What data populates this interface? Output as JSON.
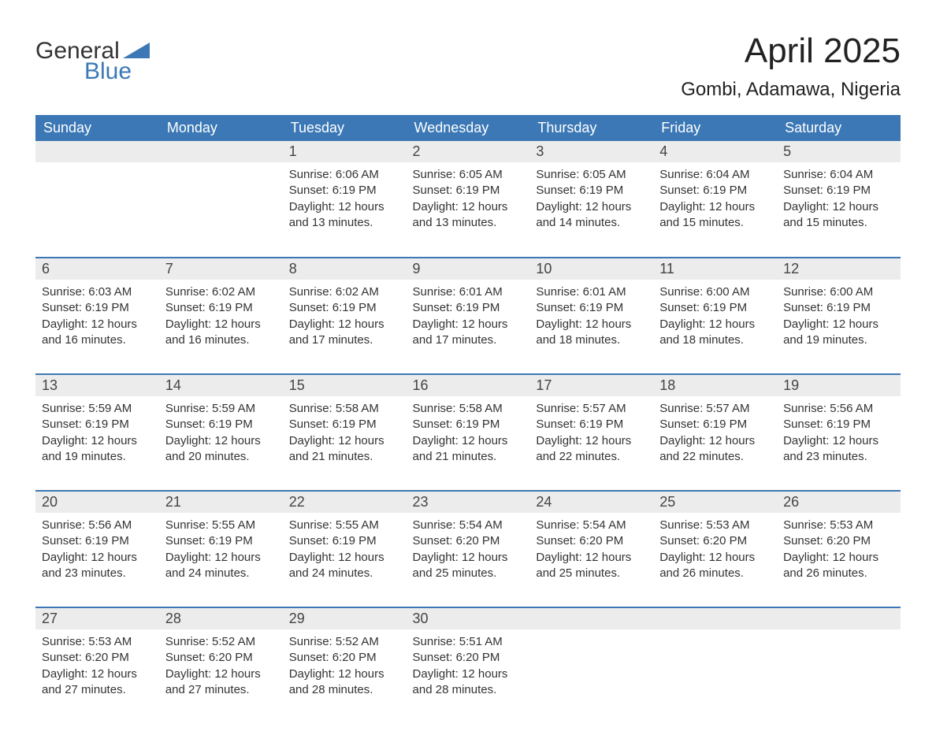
{
  "brand": {
    "word1": "General",
    "word2": "Blue",
    "text_color": "#333333",
    "accent_color": "#3b78b5"
  },
  "title": "April 2025",
  "location": "Gombi, Adamawa, Nigeria",
  "colors": {
    "header_bg": "#3b78b5",
    "header_text": "#ffffff",
    "daynum_bg": "#ececec",
    "body_bg": "#ffffff",
    "text": "#333333",
    "row_border": "#3b78b5"
  },
  "fonts": {
    "title_pt": 44,
    "location_pt": 24,
    "header_pt": 18,
    "daynum_pt": 18,
    "body_pt": 15
  },
  "day_headers": [
    "Sunday",
    "Monday",
    "Tuesday",
    "Wednesday",
    "Thursday",
    "Friday",
    "Saturday"
  ],
  "weeks": [
    [
      null,
      null,
      {
        "n": "1",
        "sunrise": "Sunrise: 6:06 AM",
        "sunset": "Sunset: 6:19 PM",
        "dl1": "Daylight: 12 hours",
        "dl2": "and 13 minutes."
      },
      {
        "n": "2",
        "sunrise": "Sunrise: 6:05 AM",
        "sunset": "Sunset: 6:19 PM",
        "dl1": "Daylight: 12 hours",
        "dl2": "and 13 minutes."
      },
      {
        "n": "3",
        "sunrise": "Sunrise: 6:05 AM",
        "sunset": "Sunset: 6:19 PM",
        "dl1": "Daylight: 12 hours",
        "dl2": "and 14 minutes."
      },
      {
        "n": "4",
        "sunrise": "Sunrise: 6:04 AM",
        "sunset": "Sunset: 6:19 PM",
        "dl1": "Daylight: 12 hours",
        "dl2": "and 15 minutes."
      },
      {
        "n": "5",
        "sunrise": "Sunrise: 6:04 AM",
        "sunset": "Sunset: 6:19 PM",
        "dl1": "Daylight: 12 hours",
        "dl2": "and 15 minutes."
      }
    ],
    [
      {
        "n": "6",
        "sunrise": "Sunrise: 6:03 AM",
        "sunset": "Sunset: 6:19 PM",
        "dl1": "Daylight: 12 hours",
        "dl2": "and 16 minutes."
      },
      {
        "n": "7",
        "sunrise": "Sunrise: 6:02 AM",
        "sunset": "Sunset: 6:19 PM",
        "dl1": "Daylight: 12 hours",
        "dl2": "and 16 minutes."
      },
      {
        "n": "8",
        "sunrise": "Sunrise: 6:02 AM",
        "sunset": "Sunset: 6:19 PM",
        "dl1": "Daylight: 12 hours",
        "dl2": "and 17 minutes."
      },
      {
        "n": "9",
        "sunrise": "Sunrise: 6:01 AM",
        "sunset": "Sunset: 6:19 PM",
        "dl1": "Daylight: 12 hours",
        "dl2": "and 17 minutes."
      },
      {
        "n": "10",
        "sunrise": "Sunrise: 6:01 AM",
        "sunset": "Sunset: 6:19 PM",
        "dl1": "Daylight: 12 hours",
        "dl2": "and 18 minutes."
      },
      {
        "n": "11",
        "sunrise": "Sunrise: 6:00 AM",
        "sunset": "Sunset: 6:19 PM",
        "dl1": "Daylight: 12 hours",
        "dl2": "and 18 minutes."
      },
      {
        "n": "12",
        "sunrise": "Sunrise: 6:00 AM",
        "sunset": "Sunset: 6:19 PM",
        "dl1": "Daylight: 12 hours",
        "dl2": "and 19 minutes."
      }
    ],
    [
      {
        "n": "13",
        "sunrise": "Sunrise: 5:59 AM",
        "sunset": "Sunset: 6:19 PM",
        "dl1": "Daylight: 12 hours",
        "dl2": "and 19 minutes."
      },
      {
        "n": "14",
        "sunrise": "Sunrise: 5:59 AM",
        "sunset": "Sunset: 6:19 PM",
        "dl1": "Daylight: 12 hours",
        "dl2": "and 20 minutes."
      },
      {
        "n": "15",
        "sunrise": "Sunrise: 5:58 AM",
        "sunset": "Sunset: 6:19 PM",
        "dl1": "Daylight: 12 hours",
        "dl2": "and 21 minutes."
      },
      {
        "n": "16",
        "sunrise": "Sunrise: 5:58 AM",
        "sunset": "Sunset: 6:19 PM",
        "dl1": "Daylight: 12 hours",
        "dl2": "and 21 minutes."
      },
      {
        "n": "17",
        "sunrise": "Sunrise: 5:57 AM",
        "sunset": "Sunset: 6:19 PM",
        "dl1": "Daylight: 12 hours",
        "dl2": "and 22 minutes."
      },
      {
        "n": "18",
        "sunrise": "Sunrise: 5:57 AM",
        "sunset": "Sunset: 6:19 PM",
        "dl1": "Daylight: 12 hours",
        "dl2": "and 22 minutes."
      },
      {
        "n": "19",
        "sunrise": "Sunrise: 5:56 AM",
        "sunset": "Sunset: 6:19 PM",
        "dl1": "Daylight: 12 hours",
        "dl2": "and 23 minutes."
      }
    ],
    [
      {
        "n": "20",
        "sunrise": "Sunrise: 5:56 AM",
        "sunset": "Sunset: 6:19 PM",
        "dl1": "Daylight: 12 hours",
        "dl2": "and 23 minutes."
      },
      {
        "n": "21",
        "sunrise": "Sunrise: 5:55 AM",
        "sunset": "Sunset: 6:19 PM",
        "dl1": "Daylight: 12 hours",
        "dl2": "and 24 minutes."
      },
      {
        "n": "22",
        "sunrise": "Sunrise: 5:55 AM",
        "sunset": "Sunset: 6:19 PM",
        "dl1": "Daylight: 12 hours",
        "dl2": "and 24 minutes."
      },
      {
        "n": "23",
        "sunrise": "Sunrise: 5:54 AM",
        "sunset": "Sunset: 6:20 PM",
        "dl1": "Daylight: 12 hours",
        "dl2": "and 25 minutes."
      },
      {
        "n": "24",
        "sunrise": "Sunrise: 5:54 AM",
        "sunset": "Sunset: 6:20 PM",
        "dl1": "Daylight: 12 hours",
        "dl2": "and 25 minutes."
      },
      {
        "n": "25",
        "sunrise": "Sunrise: 5:53 AM",
        "sunset": "Sunset: 6:20 PM",
        "dl1": "Daylight: 12 hours",
        "dl2": "and 26 minutes."
      },
      {
        "n": "26",
        "sunrise": "Sunrise: 5:53 AM",
        "sunset": "Sunset: 6:20 PM",
        "dl1": "Daylight: 12 hours",
        "dl2": "and 26 minutes."
      }
    ],
    [
      {
        "n": "27",
        "sunrise": "Sunrise: 5:53 AM",
        "sunset": "Sunset: 6:20 PM",
        "dl1": "Daylight: 12 hours",
        "dl2": "and 27 minutes."
      },
      {
        "n": "28",
        "sunrise": "Sunrise: 5:52 AM",
        "sunset": "Sunset: 6:20 PM",
        "dl1": "Daylight: 12 hours",
        "dl2": "and 27 minutes."
      },
      {
        "n": "29",
        "sunrise": "Sunrise: 5:52 AM",
        "sunset": "Sunset: 6:20 PM",
        "dl1": "Daylight: 12 hours",
        "dl2": "and 28 minutes."
      },
      {
        "n": "30",
        "sunrise": "Sunrise: 5:51 AM",
        "sunset": "Sunset: 6:20 PM",
        "dl1": "Daylight: 12 hours",
        "dl2": "and 28 minutes."
      },
      null,
      null,
      null
    ]
  ]
}
